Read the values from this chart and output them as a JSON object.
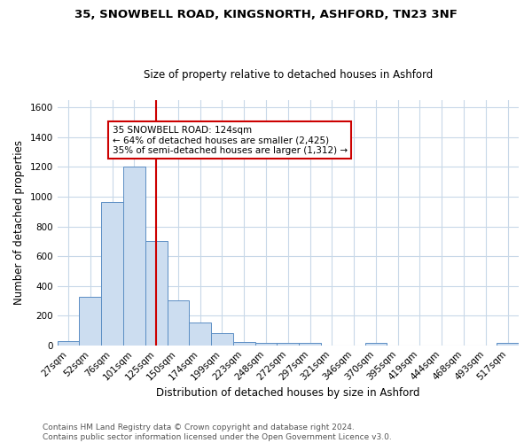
{
  "title_line1": "35, SNOWBELL ROAD, KINGSNORTH, ASHFORD, TN23 3NF",
  "title_line2": "Size of property relative to detached houses in Ashford",
  "xlabel": "Distribution of detached houses by size in Ashford",
  "ylabel": "Number of detached properties",
  "bar_labels": [
    "27sqm",
    "52sqm",
    "76sqm",
    "101sqm",
    "125sqm",
    "150sqm",
    "174sqm",
    "199sqm",
    "223sqm",
    "248sqm",
    "272sqm",
    "297sqm",
    "321sqm",
    "346sqm",
    "370sqm",
    "395sqm",
    "419sqm",
    "444sqm",
    "468sqm",
    "493sqm",
    "517sqm"
  ],
  "bar_values": [
    30,
    325,
    965,
    1200,
    700,
    305,
    155,
    80,
    25,
    15,
    15,
    15,
    0,
    0,
    15,
    0,
    0,
    0,
    0,
    0,
    15
  ],
  "bar_color": "#ccddf0",
  "bar_edge_color": "#5b8ec4",
  "vline_x_index": 4,
  "vline_color": "#cc0000",
  "annotation_line1": "35 SNOWBELL ROAD: 124sqm",
  "annotation_line2": "← 64% of detached houses are smaller (2,425)",
  "annotation_line3": "35% of semi-detached houses are larger (1,312) →",
  "annotation_box_color": "#ffffff",
  "annotation_border_color": "#cc0000",
  "ylim": [
    0,
    1650
  ],
  "yticks": [
    0,
    200,
    400,
    600,
    800,
    1000,
    1200,
    1400,
    1600
  ],
  "footer_line1": "Contains HM Land Registry data © Crown copyright and database right 2024.",
  "footer_line2": "Contains public sector information licensed under the Open Government Licence v3.0.",
  "bg_color": "#ffffff",
  "grid_color": "#c8d8e8",
  "title1_fontsize": 9.5,
  "title2_fontsize": 8.5,
  "ylabel_fontsize": 8.5,
  "xlabel_fontsize": 8.5,
  "tick_fontsize": 7.5,
  "footer_fontsize": 6.5,
  "annotation_fontsize": 7.5
}
